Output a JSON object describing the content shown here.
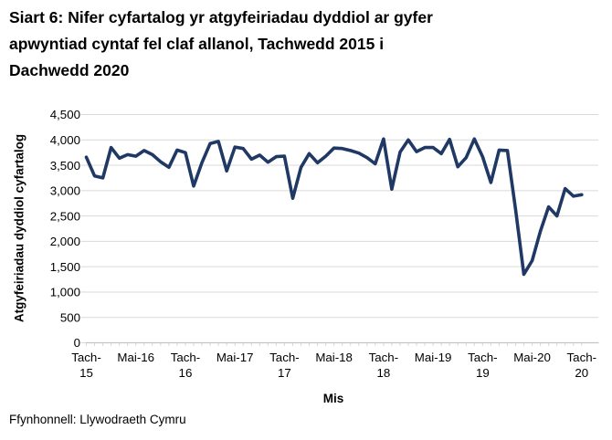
{
  "title": "Siart 6: Nifer cyfartalog yr atgyfeiriadau dyddiol ar gyfer apwyntiad cyntaf fel claf allanol, Tachwedd 2015 i Dachwedd 2020",
  "title_lines": [
    "Siart 6: Nifer cyfartalog yr atgyfeiriadau dyddiol ar gyfer",
    "apwyntiad cyntaf fel claf allanol, Tachwedd 2015 i",
    "Dachwedd 2020"
  ],
  "source": "Ffynhonnell: Llywodraeth Cymru",
  "chart_data": {
    "type": "line",
    "title": "Siart 6: Nifer cyfartalog yr atgyfeiriadau dyddiol ar gyfer apwyntiad cyntaf fel claf allanol, Tachwedd 2015 i Dachwedd 2020",
    "xlabel": "Mis",
    "ylabel": "Atgyfeiriadau dyddiol cyfartalog",
    "ylim": [
      0,
      4500
    ],
    "y_tick_step": 500,
    "y_tick_labels": [
      "0",
      "500",
      "1,000",
      "1,500",
      "2,000",
      "2,500",
      "3,000",
      "3,500",
      "4,000",
      "4,500"
    ],
    "x_tick_labels": [
      [
        "Tach-",
        "15"
      ],
      [
        "Mai-16"
      ],
      [
        "Tach-",
        "16"
      ],
      [
        "Mai-17"
      ],
      [
        "Tach-",
        "17"
      ],
      [
        "Mai-18"
      ],
      [
        "Tach-",
        "18"
      ],
      [
        "Mai-19"
      ],
      [
        "Tach-",
        "19"
      ],
      [
        "Mai-20"
      ],
      [
        "Tach-",
        "20"
      ]
    ],
    "x_tick_month_indexes": [
      0,
      6,
      12,
      18,
      24,
      30,
      36,
      42,
      48,
      54,
      60
    ],
    "frequency": "monthly",
    "start_month": "2015-11",
    "end_month": "2020-11",
    "grid": "horizontal",
    "legend": "none",
    "line_color": "#1f3864",
    "gridline_color": "#d9d9d9",
    "axis_color": "#c3c3c3",
    "values": [
      3660,
      3290,
      3250,
      3850,
      3640,
      3710,
      3680,
      3790,
      3710,
      3570,
      3460,
      3800,
      3750,
      3090,
      3550,
      3930,
      3970,
      3390,
      3860,
      3830,
      3620,
      3700,
      3560,
      3670,
      3680,
      2850,
      3460,
      3730,
      3550,
      3680,
      3840,
      3830,
      3790,
      3740,
      3650,
      3530,
      4020,
      3030,
      3760,
      4000,
      3770,
      3850,
      3850,
      3730,
      4010,
      3470,
      3650,
      4020,
      3670,
      3160,
      3800,
      3790,
      2620,
      1350,
      1620,
      2200,
      2680,
      2500,
      3040,
      2890,
      2920
    ]
  }
}
